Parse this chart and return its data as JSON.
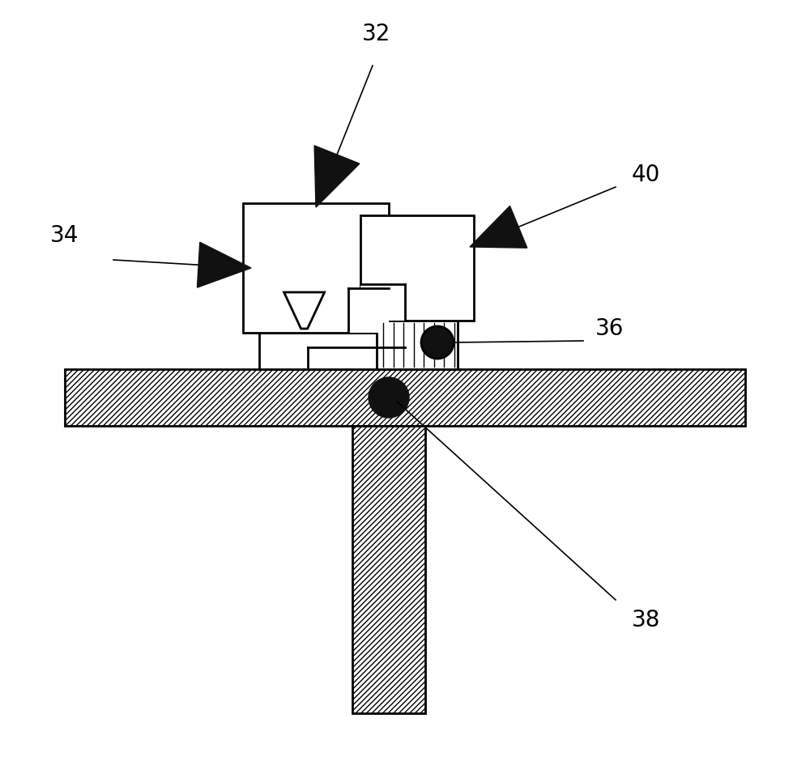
{
  "bg_color": "#ffffff",
  "line_color": "#000000",
  "label_32": "32",
  "label_34": "34",
  "label_36": "36",
  "label_38": "38",
  "label_40": "40",
  "label_fontsize": 20,
  "lw": 2.0
}
